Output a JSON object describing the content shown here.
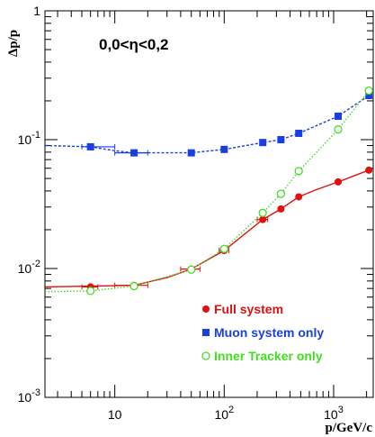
{
  "chart_data": {
    "type": "line",
    "title": "",
    "annotation": "0,0<η<0,2",
    "xlabel": "p/GeV/c",
    "ylabel": "Δp/p",
    "x_scale": "log",
    "y_scale": "log",
    "xlim": [
      2.3,
      2300
    ],
    "ylim": [
      0.001,
      1
    ],
    "x_tick_labels": [
      "10",
      "10^2",
      "10^3"
    ],
    "y_tick_labels": [
      "10^-3",
      "10^-2",
      "10^-1",
      "1"
    ],
    "grid": false,
    "legend_position": "bottom-right",
    "series": [
      {
        "name": "Full system",
        "color": "#e01010",
        "marker": "filled-circle",
        "line_style": "solid",
        "points": [
          {
            "x": 6,
            "y": 0.0072,
            "xerr": [
              5,
              7
            ]
          },
          {
            "x": 15,
            "y": 0.0074,
            "xerr": [
              10,
              20
            ]
          },
          {
            "x": 50,
            "y": 0.0099,
            "xerr": [
              40,
              60
            ]
          },
          {
            "x": 100,
            "y": 0.0138,
            "xerr": [
              90,
              110
            ]
          },
          {
            "x": 225,
            "y": 0.024,
            "xerr": [
              200,
              250
            ]
          },
          {
            "x": 330,
            "y": 0.029
          },
          {
            "x": 480,
            "y": 0.036
          },
          {
            "x": 1100,
            "y": 0.047
          },
          {
            "x": 2100,
            "y": 0.058
          }
        ],
        "curve": [
          [
            2.3,
            0.0072
          ],
          [
            15,
            0.0074
          ],
          [
            30,
            0.0085
          ],
          [
            50,
            0.0099
          ],
          [
            100,
            0.0138
          ],
          [
            225,
            0.024
          ],
          [
            330,
            0.029
          ],
          [
            480,
            0.036
          ],
          [
            700,
            0.041
          ],
          [
            1100,
            0.047
          ],
          [
            2100,
            0.058
          ]
        ]
      },
      {
        "name": "Muon system only",
        "color": "#1a3fe0",
        "marker": "filled-square",
        "line_style": "dashed",
        "points": [
          {
            "x": 6,
            "y": 0.088,
            "xerr": [
              5,
              10
            ]
          },
          {
            "x": 15,
            "y": 0.079,
            "xerr": [
              10,
              20
            ]
          },
          {
            "x": 50,
            "y": 0.079
          },
          {
            "x": 100,
            "y": 0.084
          },
          {
            "x": 225,
            "y": 0.095
          },
          {
            "x": 330,
            "y": 0.1
          },
          {
            "x": 480,
            "y": 0.112
          },
          {
            "x": 1100,
            "y": 0.152
          },
          {
            "x": 2100,
            "y": 0.22
          }
        ],
        "curve": [
          [
            2.3,
            0.09
          ],
          [
            6,
            0.088
          ],
          [
            10,
            0.082
          ],
          [
            15,
            0.079
          ],
          [
            50,
            0.079
          ],
          [
            100,
            0.084
          ],
          [
            225,
            0.095
          ],
          [
            330,
            0.1
          ],
          [
            480,
            0.112
          ],
          [
            1100,
            0.152
          ],
          [
            2100,
            0.22
          ]
        ]
      },
      {
        "name": "Inner Tracker only",
        "color": "#44dd22",
        "marker": "open-circle",
        "line_style": "dotted",
        "points": [
          {
            "x": 6,
            "y": 0.0067
          },
          {
            "x": 15,
            "y": 0.0073
          },
          {
            "x": 50,
            "y": 0.0098
          },
          {
            "x": 100,
            "y": 0.0142
          },
          {
            "x": 225,
            "y": 0.027
          },
          {
            "x": 330,
            "y": 0.038
          },
          {
            "x": 480,
            "y": 0.057
          },
          {
            "x": 1100,
            "y": 0.12
          },
          {
            "x": 2100,
            "y": 0.24
          }
        ],
        "curve": [
          [
            2.3,
            0.0066
          ],
          [
            6,
            0.0067
          ],
          [
            15,
            0.0073
          ],
          [
            50,
            0.0098
          ],
          [
            100,
            0.0142
          ],
          [
            225,
            0.027
          ],
          [
            330,
            0.038
          ],
          [
            480,
            0.057
          ],
          [
            1100,
            0.12
          ],
          [
            2100,
            0.24
          ]
        ]
      }
    ]
  }
}
